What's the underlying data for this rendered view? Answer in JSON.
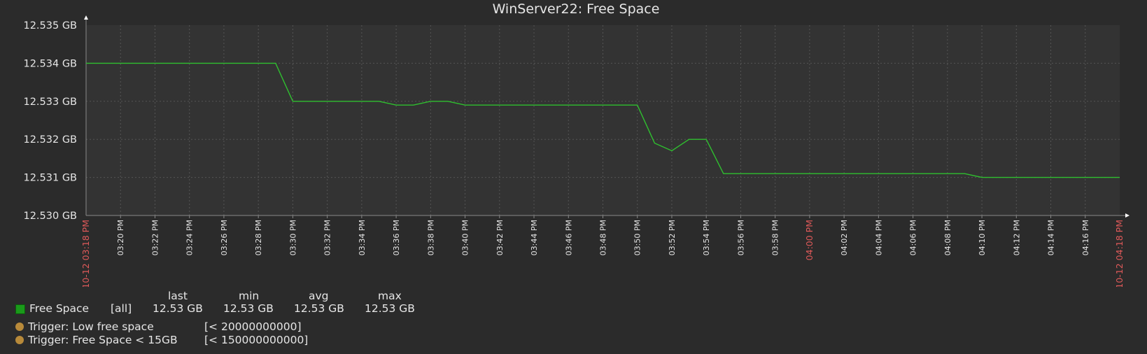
{
  "chart_data": {
    "type": "line",
    "title": "WinServer22: Free Space",
    "y_ticks": [
      "12.535 GB",
      "12.534 GB",
      "12.533 GB",
      "12.532 GB",
      "12.531 GB",
      "12.530 GB"
    ],
    "ylim": [
      12.53,
      12.535
    ],
    "grid": true,
    "x_start_label": "10-12 03:18 PM",
    "x_end_label": "10-12 04:18 PM",
    "x_ticks": [
      "03:20 PM",
      "03:22 PM",
      "03:24 PM",
      "03:26 PM",
      "03:28 PM",
      "03:30 PM",
      "03:32 PM",
      "03:34 PM",
      "03:36 PM",
      "03:38 PM",
      "03:40 PM",
      "03:42 PM",
      "03:44 PM",
      "03:46 PM",
      "03:48 PM",
      "03:50 PM",
      "03:52 PM",
      "03:54 PM",
      "03:56 PM",
      "03:58 PM",
      "04:00 PM",
      "04:02 PM",
      "04:04 PM",
      "04:06 PM",
      "04:08 PM",
      "04:10 PM",
      "04:12 PM",
      "04:14 PM",
      "04:16 PM"
    ],
    "highlight_ticks": [
      "04:00 PM"
    ],
    "series": [
      {
        "name": "Free Space",
        "color": "#1a9a1a",
        "x": [
          "03:18 PM",
          "03:29 PM",
          "03:30 PM",
          "03:35 PM",
          "03:36 PM",
          "03:37 PM",
          "03:38 PM",
          "03:39 PM",
          "03:40 PM",
          "03:50 PM",
          "03:51 PM",
          "03:52 PM",
          "03:53 PM",
          "03:54 PM",
          "03:55 PM",
          "04:09 PM",
          "04:10 PM",
          "04:18 PM"
        ],
        "values": [
          12.534,
          12.534,
          12.533,
          12.533,
          12.5329,
          12.5329,
          12.533,
          12.533,
          12.5329,
          12.5329,
          12.5319,
          12.5317,
          12.532,
          12.532,
          12.5311,
          12.5311,
          12.531,
          12.531
        ]
      }
    ]
  },
  "legend": {
    "headers": {
      "last": "last",
      "min": "min",
      "avg": "avg",
      "max": "max"
    },
    "item": {
      "name": "Free Space",
      "func": "[all]",
      "last": "12.53 GB",
      "min": "12.53 GB",
      "avg": "12.53 GB",
      "max": "12.53 GB",
      "color": "#1a9a1a"
    },
    "triggers": [
      {
        "label": "Trigger: Low free space",
        "value": "[< 20000000000]",
        "color": "#b88a3a"
      },
      {
        "label": "Trigger: Free Space < 15GB",
        "value": "[< 150000000000]",
        "color": "#b88a3a"
      }
    ]
  },
  "colors": {
    "background": "#2b2b2b",
    "plot": "#333333",
    "grid": "#555555",
    "axis": "#888888",
    "text": "#e6e6e6",
    "highlight": "#e05a5a"
  }
}
